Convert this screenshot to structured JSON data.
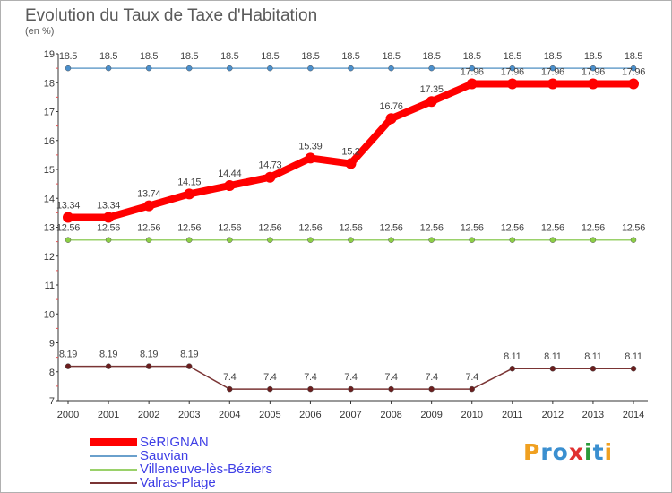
{
  "title": "Evolution du Taux de Taxe d'Habitation",
  "unit_label": "(en %)",
  "brand": {
    "text": "Proxiti",
    "letters": [
      "P",
      "r",
      "o",
      "x",
      "i",
      "t",
      "i"
    ],
    "colors": [
      "#f0a020",
      "#3a8fd0",
      "#3a8fd0",
      "#e03030",
      "#2a9a3a",
      "#3a8fd0",
      "#f0a020"
    ]
  },
  "chart_data": {
    "type": "line",
    "title": "Evolution du Taux de Taxe d'Habitation",
    "ylabel": "(en %)",
    "xlabel": "",
    "x": [
      "2000",
      "2001",
      "2002",
      "2003",
      "2004",
      "2005",
      "2006",
      "2007",
      "2008",
      "2009",
      "2010",
      "2011",
      "2012",
      "2013",
      "2014"
    ],
    "yticks": [
      7,
      8,
      9,
      10,
      11,
      12,
      13,
      14,
      15,
      16,
      17,
      18,
      19
    ],
    "ylim": [
      7,
      19
    ],
    "grid": false,
    "legend_position": "bottom-left",
    "series": [
      {
        "name": "SéRIGNAN",
        "color": "#ff0000",
        "marker": "#ff0000",
        "thick": true,
        "values": [
          13.34,
          13.34,
          13.74,
          14.15,
          14.44,
          14.73,
          15.39,
          15.2,
          16.76,
          17.35,
          17.96,
          17.96,
          17.96,
          17.96,
          17.96
        ],
        "labels": [
          "13.34",
          "13.34",
          "13.74",
          "14.15",
          "14.44",
          "14.73",
          "15.39",
          "15.2",
          "16.76",
          "17.35",
          "17.96",
          "17.96",
          "17.96",
          "17.96",
          "17.96"
        ]
      },
      {
        "name": "Sauvian",
        "color": "#6aa0cc",
        "marker": "#4a8fcc",
        "thick": false,
        "values": [
          18.5,
          18.5,
          18.5,
          18.5,
          18.5,
          18.5,
          18.5,
          18.5,
          18.5,
          18.5,
          18.5,
          18.5,
          18.5,
          18.5,
          18.5
        ],
        "labels": [
          "18.5",
          "18.5",
          "18.5",
          "18.5",
          "18.5",
          "18.5",
          "18.5",
          "18.5",
          "18.5",
          "18.5",
          "18.5",
          "18.5",
          "18.5",
          "18.5",
          "18.5"
        ]
      },
      {
        "name": "Villeneuve-lès-Béziers",
        "color": "#9ad16a",
        "marker": "#8ccf45",
        "thick": false,
        "values": [
          12.56,
          12.56,
          12.56,
          12.56,
          12.56,
          12.56,
          12.56,
          12.56,
          12.56,
          12.56,
          12.56,
          12.56,
          12.56,
          12.56,
          12.56
        ],
        "labels": [
          "12.56",
          "12.56",
          "12.56",
          "12.56",
          "12.56",
          "12.56",
          "12.56",
          "12.56",
          "12.56",
          "12.56",
          "12.56",
          "12.56",
          "12.56",
          "12.56",
          "12.56"
        ]
      },
      {
        "name": "Valras-Plage",
        "color": "#7a3434",
        "marker": "#6b1e1e",
        "thick": false,
        "values": [
          8.19,
          8.19,
          8.19,
          8.19,
          7.4,
          7.4,
          7.4,
          7.4,
          7.4,
          7.4,
          7.4,
          8.11,
          8.11,
          8.11,
          8.11
        ],
        "labels": [
          "8.19",
          "8.19",
          "8.19",
          "8.19",
          "7.4",
          "7.4",
          "7.4",
          "7.4",
          "7.4",
          "7.4",
          "7.4",
          "8.11",
          "8.11",
          "8.11",
          "8.11"
        ]
      }
    ]
  }
}
